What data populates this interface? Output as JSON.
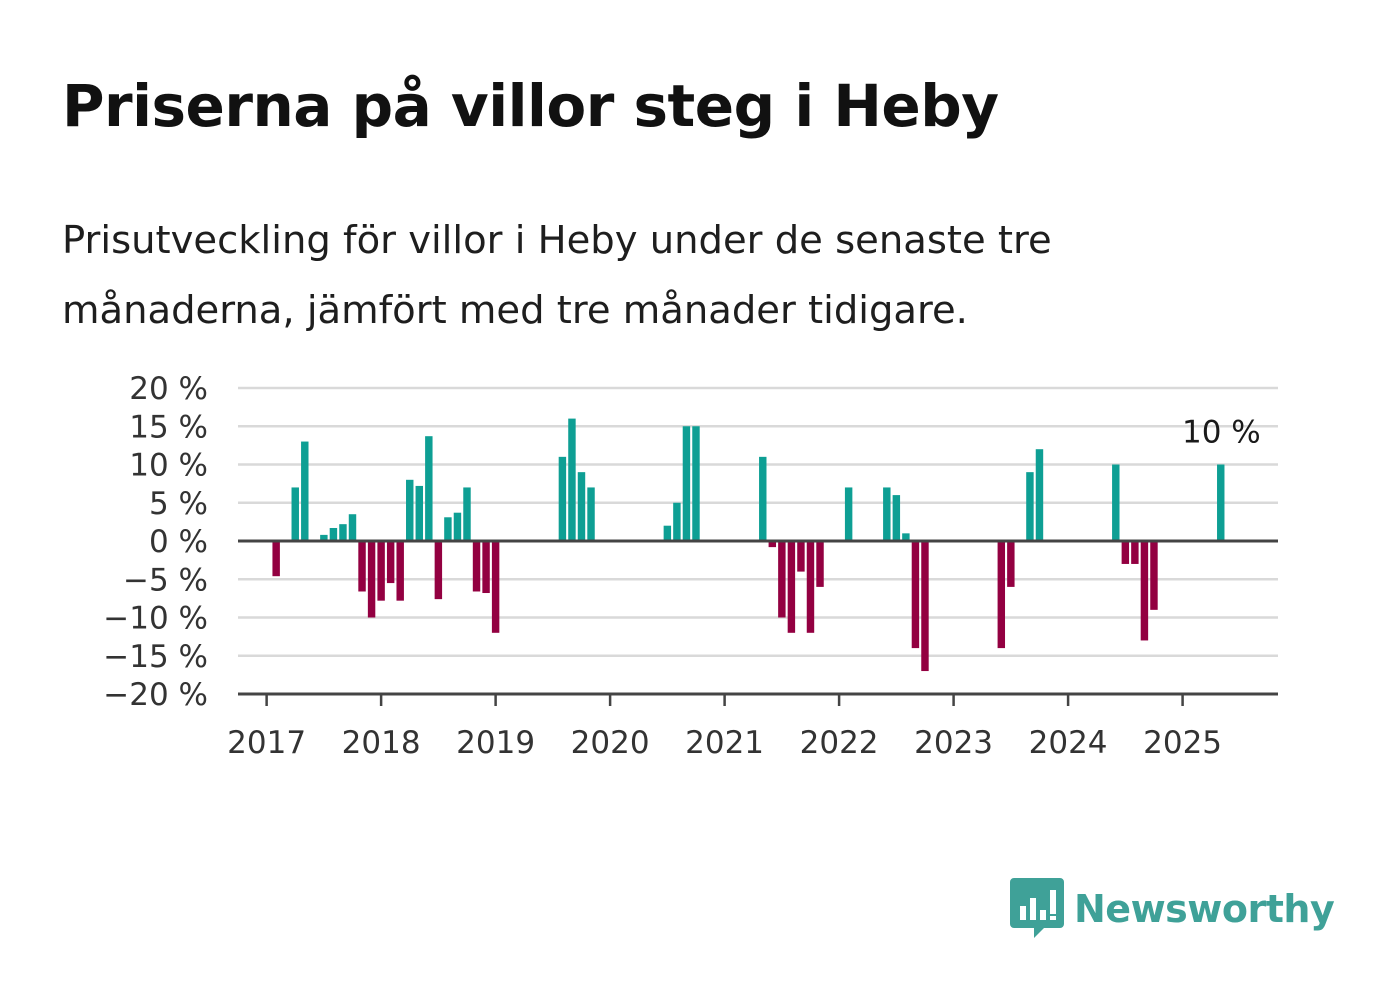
{
  "title": "Priserna på villor steg i Heby",
  "subtitle": "Prisutveckling för villor i Heby under de senaste tre månaderna, jämfört med tre månader tidigare.",
  "brand": {
    "name": "Newsworthy",
    "icon": "newsworthy-logo-icon",
    "color": "#3fa198"
  },
  "colors": {
    "positive": "#0e9f94",
    "negative": "#930041",
    "grid": "#d9d9d9",
    "axis": "#444444"
  },
  "chart_data": {
    "type": "bar",
    "title": "Priserna på villor steg i Heby",
    "ylim": [
      -20,
      20
    ],
    "y_ticks": [
      {
        "value": 20,
        "label": "20 %"
      },
      {
        "value": 15,
        "label": "15 %"
      },
      {
        "value": 10,
        "label": "10 %"
      },
      {
        "value": 5,
        "label": "5 %"
      },
      {
        "value": 0,
        "label": "0 %"
      },
      {
        "value": -5,
        "label": "−5 %"
      },
      {
        "value": -10,
        "label": "−10 %"
      },
      {
        "value": -15,
        "label": "−15 %"
      },
      {
        "value": -20,
        "label": "−20 %"
      }
    ],
    "x_ticks": [
      "2017",
      "2018",
      "2019",
      "2020",
      "2021",
      "2022",
      "2023",
      "2024",
      "2025"
    ],
    "x_range": [
      "2016-10",
      "2025-11"
    ],
    "grid": true,
    "series": [
      {
        "values": [
          {
            "x": "2017-02",
            "y": -4.6
          },
          {
            "x": "2017-04",
            "y": 7
          },
          {
            "x": "2017-05",
            "y": 13
          },
          {
            "x": "2017-07",
            "y": 0.8
          },
          {
            "x": "2017-08",
            "y": 1.7
          },
          {
            "x": "2017-09",
            "y": 2.2
          },
          {
            "x": "2017-10",
            "y": 3.5
          },
          {
            "x": "2017-11",
            "y": -6.6
          },
          {
            "x": "2017-12",
            "y": -10
          },
          {
            "x": "2018-01",
            "y": -7.8
          },
          {
            "x": "2018-02",
            "y": -5.5
          },
          {
            "x": "2018-03",
            "y": -7.8
          },
          {
            "x": "2018-04",
            "y": 8
          },
          {
            "x": "2018-05",
            "y": 7.2
          },
          {
            "x": "2018-06",
            "y": 13.7
          },
          {
            "x": "2018-07",
            "y": -7.6
          },
          {
            "x": "2018-08",
            "y": 3.1
          },
          {
            "x": "2018-09",
            "y": 3.7
          },
          {
            "x": "2018-10",
            "y": 7
          },
          {
            "x": "2018-11",
            "y": -6.6
          },
          {
            "x": "2018-12",
            "y": -6.8
          },
          {
            "x": "2019-01",
            "y": -12
          },
          {
            "x": "2019-08",
            "y": 11
          },
          {
            "x": "2019-09",
            "y": 16
          },
          {
            "x": "2019-10",
            "y": 9
          },
          {
            "x": "2019-11",
            "y": 7
          },
          {
            "x": "2020-07",
            "y": 2
          },
          {
            "x": "2020-08",
            "y": 5
          },
          {
            "x": "2020-09",
            "y": 15
          },
          {
            "x": "2020-10",
            "y": 15
          },
          {
            "x": "2021-05",
            "y": 11
          },
          {
            "x": "2021-06",
            "y": -0.8
          },
          {
            "x": "2021-07",
            "y": -10
          },
          {
            "x": "2021-08",
            "y": -12
          },
          {
            "x": "2021-09",
            "y": -4
          },
          {
            "x": "2021-10",
            "y": -12
          },
          {
            "x": "2021-11",
            "y": -6
          },
          {
            "x": "2022-02",
            "y": 7
          },
          {
            "x": "2022-06",
            "y": 7
          },
          {
            "x": "2022-07",
            "y": 6
          },
          {
            "x": "2022-08",
            "y": 1
          },
          {
            "x": "2022-09",
            "y": -14
          },
          {
            "x": "2022-10",
            "y": -17
          },
          {
            "x": "2023-06",
            "y": -14
          },
          {
            "x": "2023-07",
            "y": -6
          },
          {
            "x": "2023-09",
            "y": 9
          },
          {
            "x": "2023-10",
            "y": 12
          },
          {
            "x": "2024-06",
            "y": 10
          },
          {
            "x": "2024-07",
            "y": -3
          },
          {
            "x": "2024-08",
            "y": -3
          },
          {
            "x": "2024-09",
            "y": -13
          },
          {
            "x": "2024-10",
            "y": -9
          },
          {
            "x": "2025-05",
            "y": 10
          }
        ]
      }
    ],
    "annotations": [
      {
        "x": "2025-05",
        "text": "10 %"
      }
    ]
  }
}
